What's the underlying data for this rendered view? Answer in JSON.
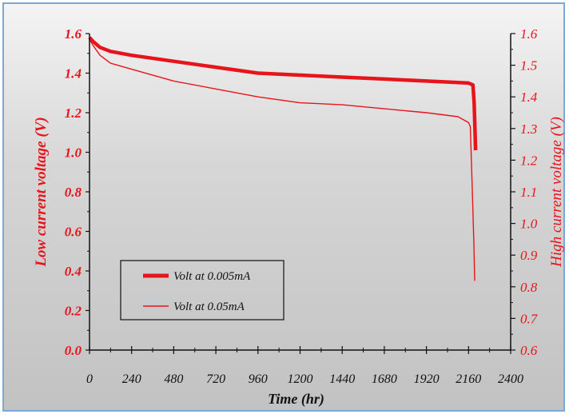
{
  "chart_data": {
    "type": "line",
    "xlabel": "Time (hr)",
    "ylabel": "Low current voltage (V)",
    "y2label": "High current voltage (V)",
    "xlim": [
      0,
      2400
    ],
    "ylim": [
      0.0,
      1.6
    ],
    "y2lim": [
      0.6,
      1.6
    ],
    "x_ticks": [
      "0",
      "240",
      "480",
      "720",
      "960",
      "1200",
      "1440",
      "1680",
      "1920",
      "2160",
      "2400"
    ],
    "y_ticks": [
      "0.0",
      "0.2",
      "0.4",
      "0.6",
      "0.8",
      "1.0",
      "1.2",
      "1.4",
      "1.6"
    ],
    "y2_ticks": [
      "0.6",
      "0.7",
      "0.8",
      "0.9",
      "1.0",
      "1.1",
      "1.2",
      "1.3",
      "1.4",
      "1.5",
      "1.6"
    ],
    "legend_position": "lower-left",
    "colors": {
      "series": "#e8141b",
      "axis": "#111111"
    },
    "series": [
      {
        "name": "Volt at 0.005mA",
        "axis": "left",
        "width": "thick",
        "points": [
          [
            0,
            1.58
          ],
          [
            20,
            1.56
          ],
          [
            60,
            1.53
          ],
          [
            120,
            1.51
          ],
          [
            240,
            1.49
          ],
          [
            480,
            1.46
          ],
          [
            720,
            1.43
          ],
          [
            960,
            1.4
          ],
          [
            1200,
            1.39
          ],
          [
            1440,
            1.38
          ],
          [
            1680,
            1.37
          ],
          [
            1920,
            1.36
          ],
          [
            2160,
            1.35
          ],
          [
            2185,
            1.34
          ],
          [
            2192,
            1.25
          ],
          [
            2198,
            1.08
          ],
          [
            2200,
            1.01
          ]
        ]
      },
      {
        "name": "Volt at 0.05mA",
        "axis": "left",
        "width": "thin",
        "points": [
          [
            0,
            1.57
          ],
          [
            20,
            1.54
          ],
          [
            60,
            1.49
          ],
          [
            120,
            1.45
          ],
          [
            240,
            1.42
          ],
          [
            480,
            1.36
          ],
          [
            720,
            1.32
          ],
          [
            960,
            1.28
          ],
          [
            1200,
            1.25
          ],
          [
            1440,
            1.24
          ],
          [
            1680,
            1.22
          ],
          [
            1920,
            1.2
          ],
          [
            2100,
            1.18
          ],
          [
            2160,
            1.15
          ],
          [
            2170,
            1.13
          ],
          [
            2180,
            0.85
          ],
          [
            2190,
            0.55
          ],
          [
            2195,
            0.35
          ]
        ]
      }
    ]
  },
  "labels": {
    "xlabel": "Time (hr)",
    "ylabel": "Low current  voltage (V)",
    "y2label": "High current voltage (V)",
    "legend": [
      "Volt at 0.005mA",
      "Volt at 0.05mA"
    ]
  }
}
